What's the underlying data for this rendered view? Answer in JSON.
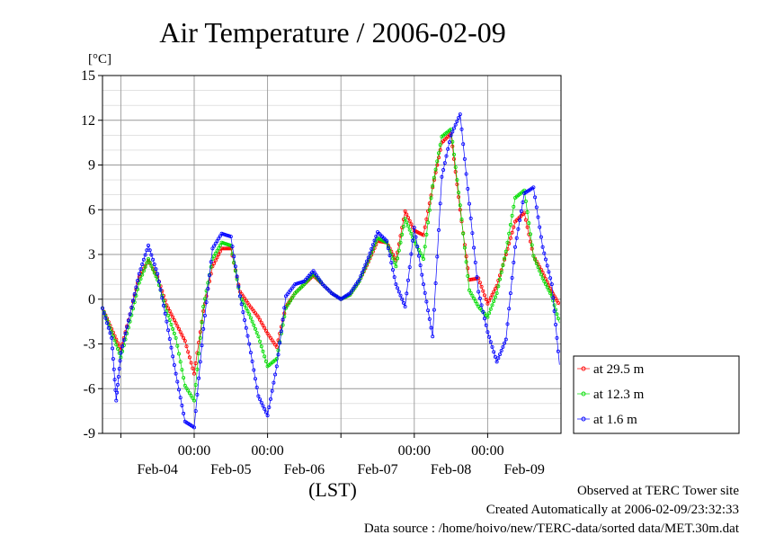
{
  "chart_data": {
    "type": "line",
    "title": "Air Temperature / 2006-02-09",
    "yunit": "[°C]",
    "xlabel": "(LST)",
    "ylim": [
      -9,
      15
    ],
    "yticks": [
      -9,
      -6,
      -3,
      0,
      3,
      6,
      9,
      12,
      15
    ],
    "xlim": [
      "2006-02-03 18:00",
      "2006-02-10 00:00"
    ],
    "time_ticks": [
      {
        "t": "2006-02-05 00:00",
        "label": "00:00"
      },
      {
        "t": "2006-02-06 00:00",
        "label": "00:00"
      },
      {
        "t": "2006-02-08 00:00",
        "label": "00:00"
      },
      {
        "t": "2006-02-09 00:00",
        "label": "00:00"
      }
    ],
    "date_labels": [
      {
        "t": "2006-02-04 12:00",
        "label": "Feb-04"
      },
      {
        "t": "2006-02-05 12:00",
        "label": "Feb-05"
      },
      {
        "t": "2006-02-06 12:00",
        "label": "Feb-06"
      },
      {
        "t": "2006-02-07 12:00",
        "label": "Feb-07"
      },
      {
        "t": "2006-02-08 12:00",
        "label": "Feb-08"
      },
      {
        "t": "2006-02-09 12:00",
        "label": "Feb-09"
      }
    ],
    "grid": true,
    "legend_position": "right",
    "series": [
      {
        "name": "at 29.5 m",
        "color": "#ff0000",
        "x": [
          "2006-02-03 18:00",
          "2006-02-03 21:00",
          "2006-02-04 00:00",
          "2006-02-04 03:00",
          "2006-02-04 06:00",
          "2006-02-04 09:00",
          "2006-02-04 12:00",
          "2006-02-04 15:00",
          "2006-02-04 18:00",
          "2006-02-04 21:00",
          "2006-02-05 00:00",
          "2006-02-05 03:00",
          "2006-02-05 06:00",
          "2006-02-05 09:00",
          "2006-02-05 12:00",
          "2006-02-05 15:00",
          "2006-02-05 18:00",
          "2006-02-05 21:00",
          "2006-02-06 00:00",
          "2006-02-06 03:00",
          "2006-02-06 06:00",
          "2006-02-06 09:00",
          "2006-02-06 12:00",
          "2006-02-06 15:00",
          "2006-02-06 18:00",
          "2006-02-06 21:00",
          "2006-02-07 00:00",
          "2006-02-07 03:00",
          "2006-02-07 06:00",
          "2006-02-07 09:00",
          "2006-02-07 12:00",
          "2006-02-07 15:00",
          "2006-02-07 18:00",
          "2006-02-07 21:00",
          "2006-02-08 00:00",
          "2006-02-08 03:00",
          "2006-02-08 06:00",
          "2006-02-08 09:00",
          "2006-02-08 12:00",
          "2006-02-08 15:00",
          "2006-02-08 18:00",
          "2006-02-08 21:00",
          "2006-02-09 00:00",
          "2006-02-09 03:00",
          "2006-02-09 06:00",
          "2006-02-09 09:00",
          "2006-02-09 12:00",
          "2006-02-09 15:00",
          "2006-02-09 18:00",
          "2006-02-09 21:00",
          "2006-02-09 23:30"
        ],
        "values": [
          -0.6,
          -2.0,
          -3.4,
          -1.0,
          1.5,
          2.6,
          1.5,
          -0.4,
          -1.6,
          -2.8,
          -5.0,
          -0.8,
          2.2,
          3.4,
          3.4,
          0.5,
          -0.4,
          -1.2,
          -2.3,
          -3.2,
          -0.5,
          0.4,
          1.0,
          1.6,
          1.0,
          0.4,
          0.0,
          0.3,
          1.2,
          2.5,
          3.9,
          3.8,
          2.6,
          5.9,
          4.6,
          4.3,
          7.5,
          10.5,
          11.1,
          6.0,
          1.3,
          1.4,
          -0.3,
          0.9,
          3.0,
          5.2,
          5.8,
          2.9,
          1.8,
          0.5,
          -0.4
        ]
      },
      {
        "name": "at 12.3 m",
        "color": "#00dd00",
        "x": [
          "2006-02-03 18:00",
          "2006-02-03 21:00",
          "2006-02-04 00:00",
          "2006-02-04 03:00",
          "2006-02-04 06:00",
          "2006-02-04 09:00",
          "2006-02-04 12:00",
          "2006-02-04 15:00",
          "2006-02-04 18:00",
          "2006-02-04 21:00",
          "2006-02-05 00:00",
          "2006-02-05 03:00",
          "2006-02-05 06:00",
          "2006-02-05 09:00",
          "2006-02-05 12:00",
          "2006-02-05 15:00",
          "2006-02-05 18:00",
          "2006-02-05 21:00",
          "2006-02-06 00:00",
          "2006-02-06 03:00",
          "2006-02-06 06:00",
          "2006-02-06 09:00",
          "2006-02-06 12:00",
          "2006-02-06 15:00",
          "2006-02-06 18:00",
          "2006-02-06 21:00",
          "2006-02-07 00:00",
          "2006-02-07 03:00",
          "2006-02-07 06:00",
          "2006-02-07 09:00",
          "2006-02-07 12:00",
          "2006-02-07 15:00",
          "2006-02-07 18:00",
          "2006-02-07 21:00",
          "2006-02-08 00:00",
          "2006-02-08 03:00",
          "2006-02-08 06:00",
          "2006-02-08 09:00",
          "2006-02-08 12:00",
          "2006-02-08 15:00",
          "2006-02-08 18:00",
          "2006-02-08 21:00",
          "2006-02-09 00:00",
          "2006-02-09 03:00",
          "2006-02-09 06:00",
          "2006-02-09 09:00",
          "2006-02-09 12:00",
          "2006-02-09 15:00",
          "2006-02-09 18:00",
          "2006-02-09 21:00",
          "2006-02-09 23:30"
        ],
        "values": [
          -0.6,
          -2.2,
          -3.9,
          -1.5,
          1.1,
          2.7,
          1.3,
          -0.8,
          -2.6,
          -5.8,
          -6.8,
          -0.5,
          2.7,
          3.8,
          3.6,
          0.2,
          -1.0,
          -2.5,
          -4.5,
          -4.0,
          -0.6,
          0.4,
          1.0,
          1.7,
          1.0,
          0.4,
          0.0,
          0.3,
          1.2,
          2.6,
          4.1,
          3.8,
          2.2,
          5.4,
          3.9,
          2.7,
          7.6,
          10.9,
          11.4,
          6.3,
          0.6,
          -0.5,
          -1.2,
          0.4,
          3.2,
          6.8,
          7.3,
          2.9,
          1.4,
          0.2,
          -1.6
        ]
      },
      {
        "name": "at 1.6 m",
        "color": "#0000ff",
        "x": [
          "2006-02-03 18:00",
          "2006-02-03 21:00",
          "2006-02-03 22:30",
          "2006-02-04 00:00",
          "2006-02-04 03:00",
          "2006-02-04 06:00",
          "2006-02-04 09:00",
          "2006-02-04 12:00",
          "2006-02-04 15:00",
          "2006-02-04 18:00",
          "2006-02-04 21:00",
          "2006-02-05 00:00",
          "2006-02-05 03:00",
          "2006-02-05 06:00",
          "2006-02-05 09:00",
          "2006-02-05 12:00",
          "2006-02-05 15:00",
          "2006-02-05 18:00",
          "2006-02-05 21:00",
          "2006-02-06 00:00",
          "2006-02-06 03:00",
          "2006-02-06 06:00",
          "2006-02-06 09:00",
          "2006-02-06 12:00",
          "2006-02-06 15:00",
          "2006-02-06 18:00",
          "2006-02-06 21:00",
          "2006-02-07 00:00",
          "2006-02-07 03:00",
          "2006-02-07 06:00",
          "2006-02-07 09:00",
          "2006-02-07 12:00",
          "2006-02-07 15:00",
          "2006-02-07 18:00",
          "2006-02-07 21:00",
          "2006-02-08 00:00",
          "2006-02-08 03:00",
          "2006-02-08 06:00",
          "2006-02-08 09:00",
          "2006-02-08 12:00",
          "2006-02-08 15:00",
          "2006-02-08 18:00",
          "2006-02-08 21:00",
          "2006-02-09 00:00",
          "2006-02-09 03:00",
          "2006-02-09 06:00",
          "2006-02-09 09:00",
          "2006-02-09 12:00",
          "2006-02-09 15:00",
          "2006-02-09 18:00",
          "2006-02-09 21:00",
          "2006-02-09 23:30"
        ],
        "values": [
          -0.6,
          -2.6,
          -6.8,
          -3.6,
          -1.0,
          1.7,
          3.6,
          1.7,
          -1.5,
          -5.0,
          -8.2,
          -8.6,
          -2.0,
          3.4,
          4.4,
          4.2,
          0.2,
          -3.0,
          -6.5,
          -7.8,
          -4.5,
          0.2,
          1.0,
          1.2,
          1.9,
          1.0,
          0.4,
          0.0,
          0.4,
          1.3,
          2.8,
          4.5,
          3.9,
          1.0,
          -0.5,
          4.8,
          1.0,
          -2.5,
          8.2,
          11.0,
          12.4,
          6.4,
          0.5,
          -2.2,
          -4.2,
          -2.7,
          3.5,
          7.1,
          7.5,
          3.5,
          1.0,
          -4.4
        ]
      }
    ]
  },
  "footer": {
    "line1": "Observed at TERC Tower site",
    "line2": "Created Automatically at 2006-02-09/23:32:33",
    "line3": "Data source : /home/hoivo/new/TERC-data/sorted  data/MET.30m.dat"
  }
}
